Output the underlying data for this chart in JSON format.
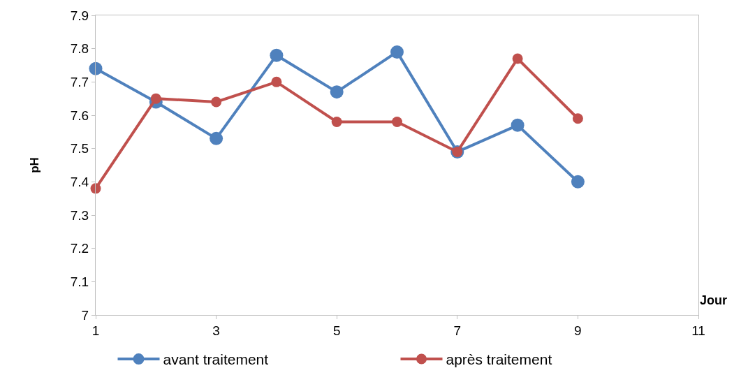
{
  "chart_data": {
    "type": "line",
    "xlabel": "Jour",
    "ylabel": "pH",
    "x": [
      1,
      2,
      3,
      4,
      5,
      6,
      7,
      8,
      9
    ],
    "series": [
      {
        "name": "avant traitement",
        "color": "#4f81bd",
        "values": [
          7.74,
          7.64,
          7.53,
          7.78,
          7.67,
          7.79,
          7.49,
          7.57,
          7.4
        ]
      },
      {
        "name": "après traitement",
        "color": "#c0504d",
        "values": [
          7.38,
          7.65,
          7.64,
          7.7,
          7.58,
          7.58,
          7.49,
          7.77,
          7.59
        ]
      }
    ],
    "xlim": [
      1,
      11
    ],
    "xticks": [
      1,
      3,
      5,
      7,
      9,
      11
    ],
    "ylim": [
      7,
      7.9
    ],
    "yticks": [
      7,
      7.1,
      7.2,
      7.3,
      7.4,
      7.5,
      7.6,
      7.7,
      7.8,
      7.9
    ],
    "legend": "bottom",
    "marker": "circle",
    "line_style": "solid"
  }
}
